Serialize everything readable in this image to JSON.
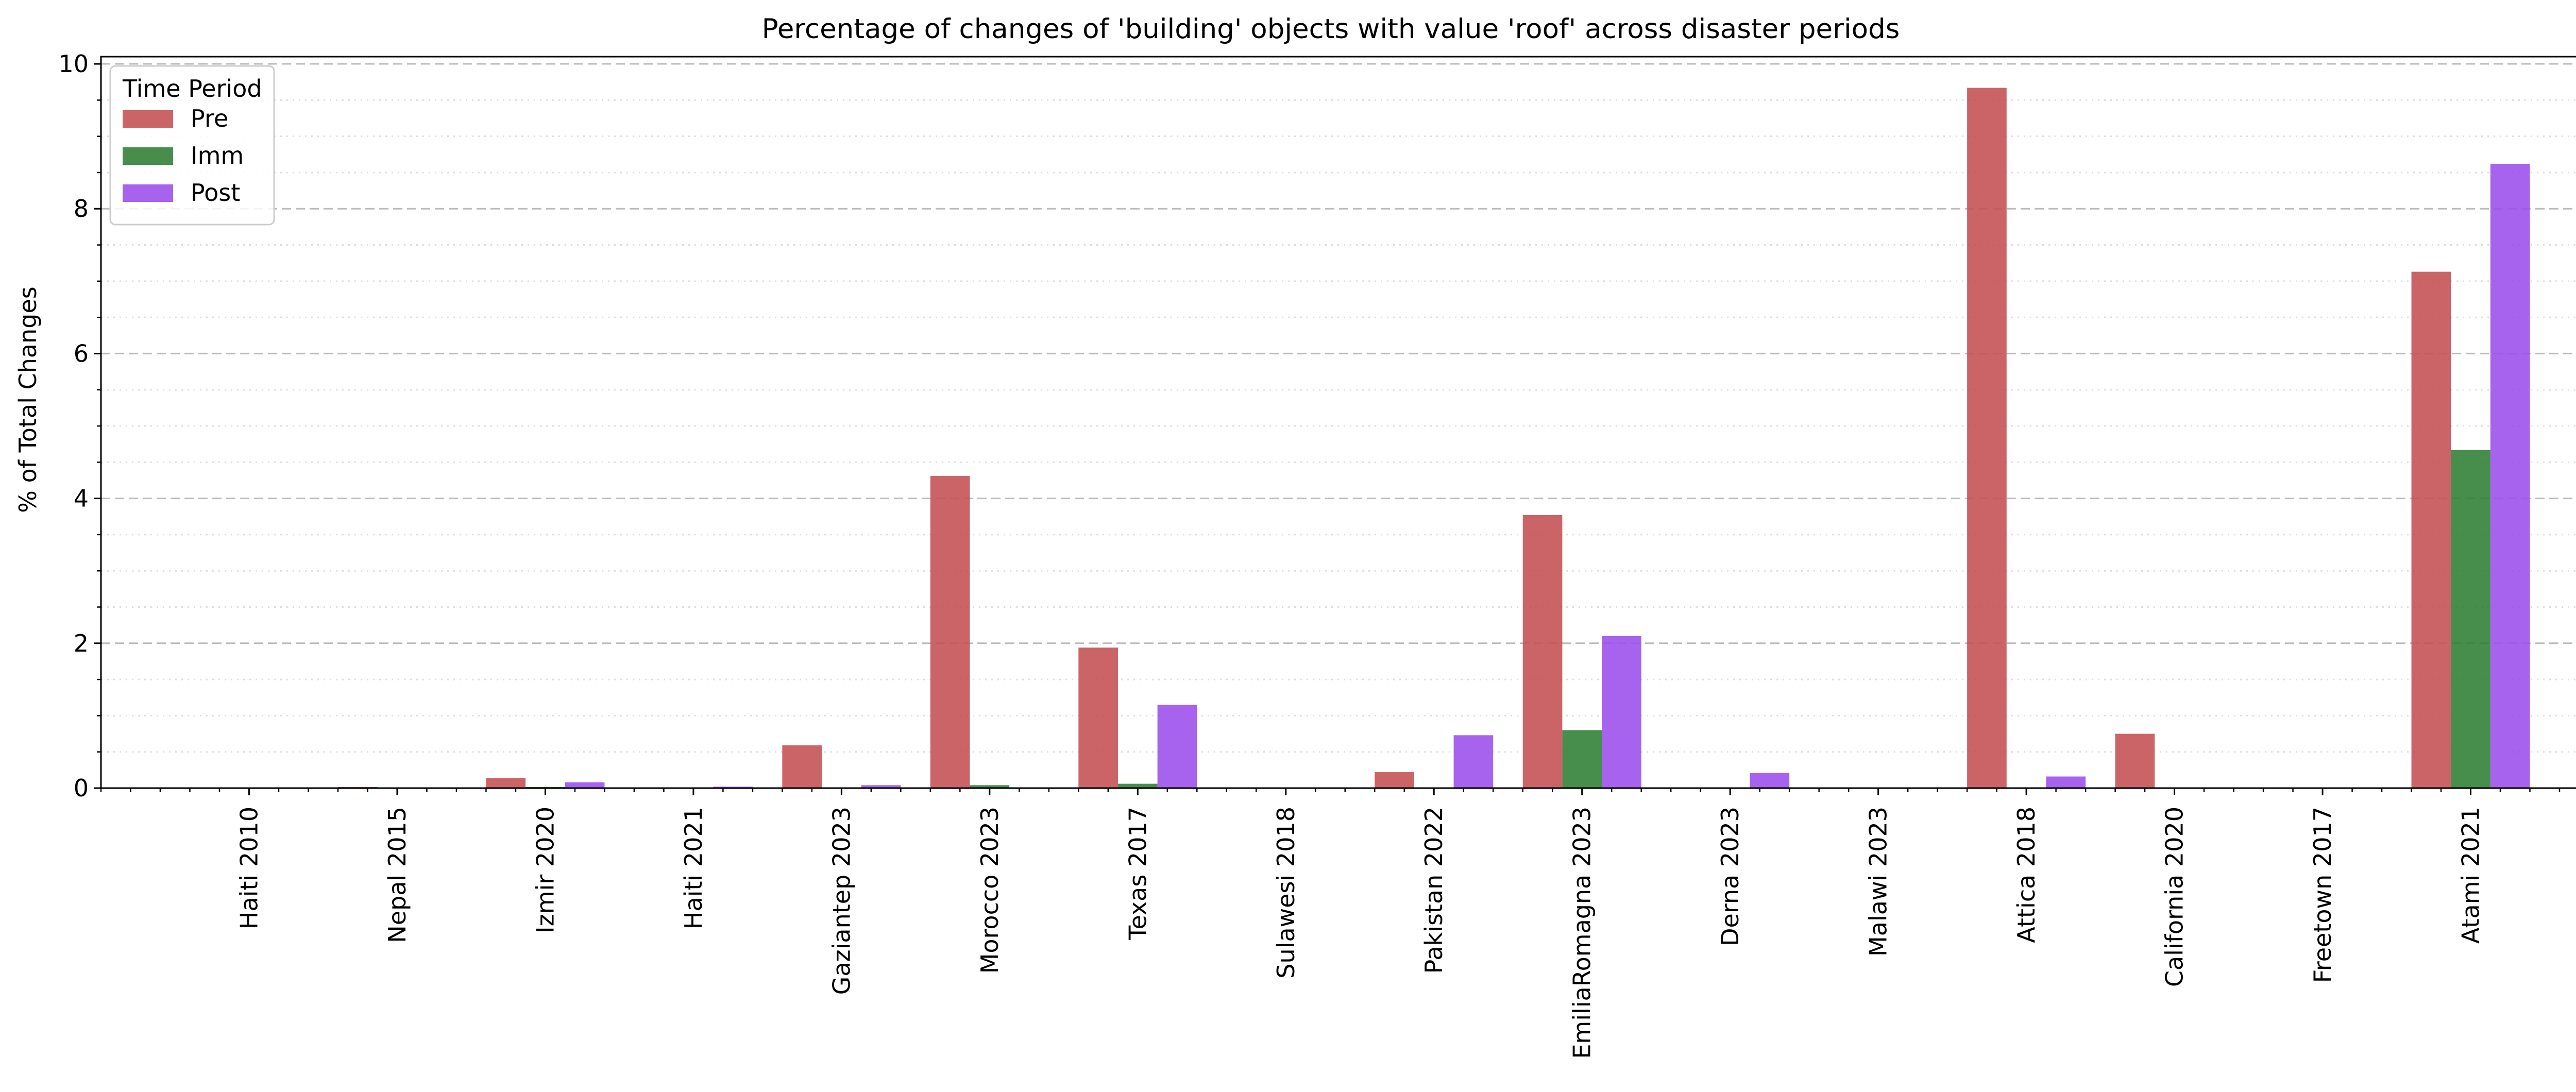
{
  "chart_data": {
    "type": "bar",
    "title": "Percentage of changes of 'building' objects with value 'roof' across disaster periods",
    "xlabel": "",
    "ylabel": "% of Total Changes",
    "ylim": [
      0,
      10.1
    ],
    "yticks": [
      0,
      2,
      4,
      6,
      8,
      10
    ],
    "grid": "horizontal",
    "legend": {
      "title": "Time Period",
      "position": "top-left"
    },
    "categories": [
      "Haiti 2010",
      "Nepal 2015",
      "Izmir 2020",
      "Haiti 2021",
      "Gaziantep 2023",
      "Morocco 2023",
      "Texas 2017",
      "Sulawesi 2018",
      "Pakistan 2022",
      "EmiliaRomagna 2023",
      "Derna 2023",
      "Malawi 2023",
      "Attica 2018",
      "California 2020",
      "Freetown 2017",
      "Atami 2021"
    ],
    "series": [
      {
        "name": "Pre",
        "color": "#c44e52",
        "values": [
          0,
          0.01,
          0.14,
          0,
          0.59,
          4.31,
          1.94,
          0,
          0.22,
          3.77,
          0,
          0,
          9.67,
          0.75,
          0,
          7.13
        ]
      },
      {
        "name": "Imm",
        "color": "#2e7d32",
        "values": [
          0,
          0,
          0.01,
          0,
          0,
          0.04,
          0.06,
          0,
          0,
          0.8,
          0,
          0,
          0,
          0,
          0,
          4.67
        ]
      },
      {
        "name": "Post",
        "color": "#9b4dea",
        "values": [
          0,
          0,
          0.08,
          0.02,
          0.04,
          0,
          1.15,
          0,
          0.73,
          2.1,
          0.21,
          0,
          0.16,
          0,
          0,
          8.62
        ]
      }
    ]
  }
}
